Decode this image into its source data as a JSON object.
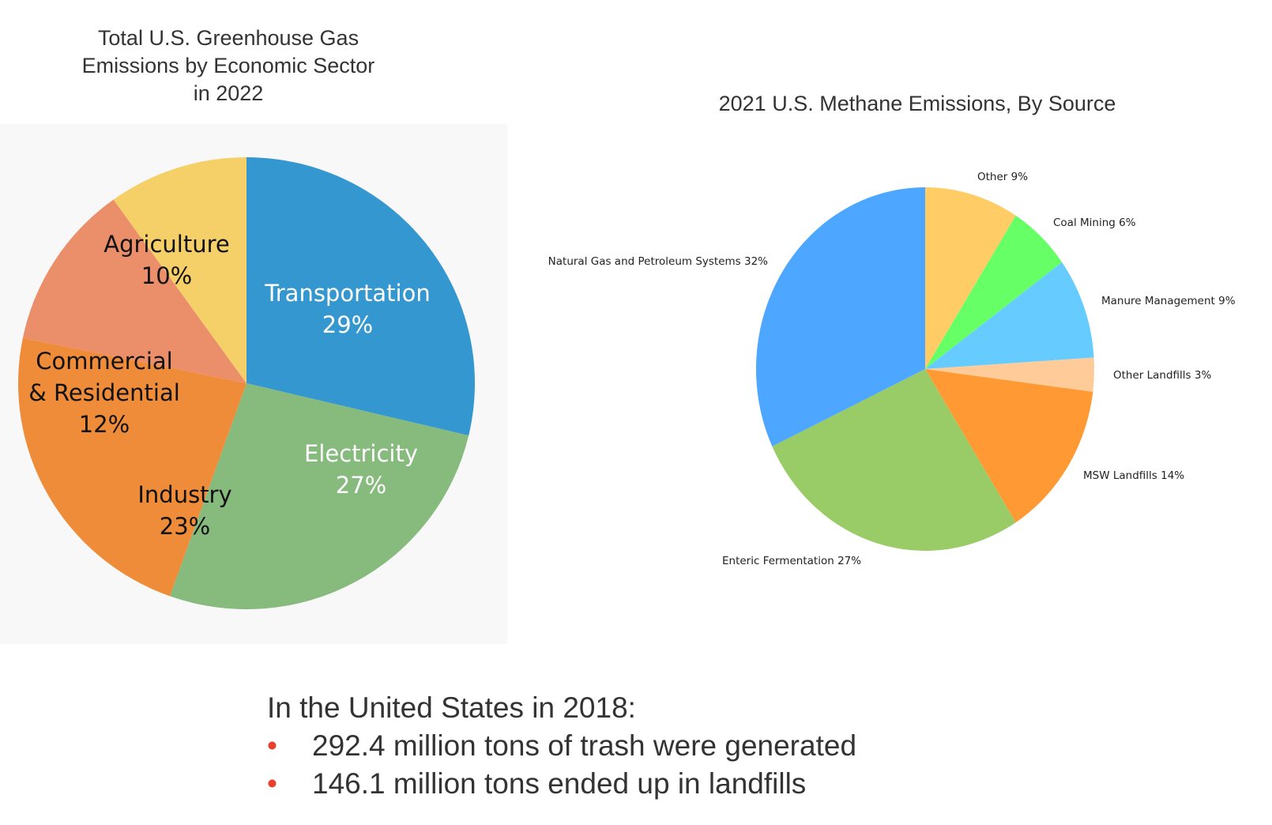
{
  "chart_data": [
    {
      "type": "pie",
      "title_lines": [
        "Total U.S. Greenhouse Gas",
        "Emissions by Economic Sector",
        "in 2022"
      ],
      "slices": [
        {
          "label_lines": [
            "Transportation"
          ],
          "pct_label": "29%",
          "value": 29,
          "color": "#3497cf",
          "text_color": "#ffffff"
        },
        {
          "label_lines": [
            "Electricity"
          ],
          "pct_label": "27%",
          "value": 27,
          "color": "#86bb7d",
          "text_color": "#ffffff"
        },
        {
          "label_lines": [
            "Industry"
          ],
          "pct_label": "23%",
          "value": 23,
          "color": "#ee8c3a",
          "text_color": "#111111"
        },
        {
          "label_lines": [
            "Commercial",
            "& Residential"
          ],
          "pct_label": "12%",
          "value": 12,
          "color": "#eb8f6b",
          "text_color": "#111111"
        },
        {
          "label_lines": [
            "Agriculture"
          ],
          "pct_label": "10%",
          "value": 10,
          "color": "#f5d068",
          "text_color": "#111111"
        }
      ]
    },
    {
      "type": "pie",
      "title": "2021 U.S. Methane Emissions, By Source",
      "slices": [
        {
          "label": "Other 9%",
          "value": 9,
          "color": "#ffcc66"
        },
        {
          "label": "Coal Mining 6%",
          "value": 6,
          "color": "#66ff66"
        },
        {
          "label": "Manure Management 9%",
          "value": 9,
          "color": "#66ccff"
        },
        {
          "label": "Other Landfills 3%",
          "value": 3,
          "color": "#ffcc99"
        },
        {
          "label": "MSW Landfills 14%",
          "value": 14,
          "color": "#ff9933"
        },
        {
          "label": "Enteric Fermentation 27%",
          "value": 27,
          "color": "#99cc66"
        },
        {
          "label": "Natural Gas and Petroleum Systems 32%",
          "value": 32,
          "color": "#4da6ff"
        }
      ]
    }
  ],
  "facts": {
    "heading": "In the United States in 2018:",
    "bullet_char": "•",
    "items": [
      "292.4 million tons of trash were generated",
      "146.1 million tons ended up in landfills"
    ]
  }
}
